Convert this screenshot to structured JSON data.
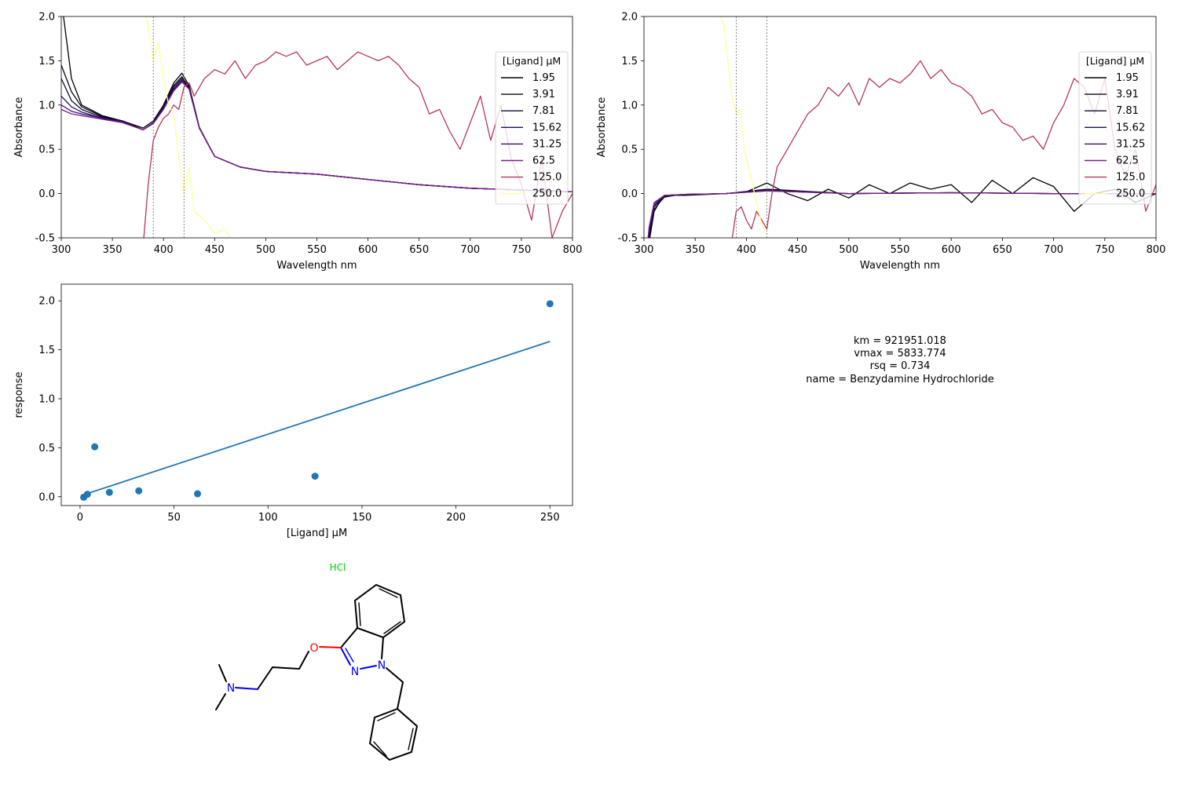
{
  "chart_data": [
    {
      "type": "line",
      "panel": "raw-spectra",
      "xlabel": "Wavelength nm",
      "ylabel": "Absorbance",
      "xlim": [
        300,
        800
      ],
      "ylim": [
        -0.5,
        2.0
      ],
      "xticks": [
        300,
        350,
        400,
        450,
        500,
        550,
        600,
        650,
        700,
        750,
        800
      ],
      "yticks": [
        -0.5,
        0.0,
        0.5,
        1.0,
        1.5,
        2.0
      ],
      "vlines": [
        390,
        420
      ],
      "legend": {
        "title": "[Ligand] µM",
        "position": "right",
        "entries": [
          "1.95",
          "3.91",
          "7.81",
          "15.62",
          "31.25",
          "62.5",
          "125.0",
          "250.0"
        ]
      },
      "series": [
        {
          "name": "1.95",
          "color": "#000000",
          "x": [
            300,
            310,
            320,
            340,
            360,
            380,
            390,
            400,
            410,
            418,
            425,
            435,
            450,
            475,
            500,
            550,
            600,
            650,
            700,
            750,
            800
          ],
          "y": [
            2.2,
            1.3,
            1.0,
            0.88,
            0.82,
            0.74,
            0.82,
            1.0,
            1.25,
            1.36,
            1.22,
            0.75,
            0.42,
            0.3,
            0.25,
            0.22,
            0.16,
            0.1,
            0.06,
            0.04,
            0.02
          ]
        },
        {
          "name": "3.91",
          "color": "#0a0720",
          "x": [
            300,
            310,
            320,
            340,
            360,
            380,
            390,
            400,
            410,
            418,
            425,
            435,
            450,
            475,
            500,
            550,
            600,
            650,
            700,
            750,
            800
          ],
          "y": [
            1.45,
            1.15,
            0.98,
            0.87,
            0.82,
            0.72,
            0.8,
            0.98,
            1.22,
            1.32,
            1.2,
            0.74,
            0.42,
            0.3,
            0.25,
            0.22,
            0.16,
            0.1,
            0.06,
            0.04,
            0.02
          ]
        },
        {
          "name": "7.81",
          "color": "#150c33",
          "x": [
            300,
            310,
            320,
            340,
            360,
            380,
            390,
            400,
            410,
            418,
            425,
            435,
            450,
            475,
            500,
            550,
            600,
            650,
            700,
            750,
            800
          ],
          "y": [
            1.3,
            1.05,
            0.95,
            0.86,
            0.82,
            0.72,
            0.8,
            0.97,
            1.2,
            1.3,
            1.2,
            0.74,
            0.42,
            0.3,
            0.25,
            0.22,
            0.16,
            0.1,
            0.06,
            0.04,
            0.02
          ]
        },
        {
          "name": "15.62",
          "color": "#231151",
          "x": [
            300,
            310,
            320,
            340,
            360,
            380,
            390,
            400,
            410,
            418,
            425,
            435,
            450,
            475,
            500,
            550,
            600,
            650,
            700,
            750,
            800
          ],
          "y": [
            1.1,
            0.98,
            0.92,
            0.85,
            0.81,
            0.72,
            0.8,
            0.96,
            1.18,
            1.28,
            1.19,
            0.74,
            0.42,
            0.3,
            0.25,
            0.22,
            0.16,
            0.1,
            0.06,
            0.04,
            0.02
          ]
        },
        {
          "name": "31.25",
          "color": "#3b0f70",
          "x": [
            300,
            310,
            320,
            340,
            360,
            380,
            390,
            400,
            410,
            418,
            425,
            435,
            450,
            475,
            500,
            550,
            600,
            650,
            700,
            750,
            800
          ],
          "y": [
            1.0,
            0.93,
            0.9,
            0.85,
            0.81,
            0.72,
            0.8,
            0.96,
            1.17,
            1.27,
            1.18,
            0.74,
            0.42,
            0.3,
            0.25,
            0.22,
            0.16,
            0.1,
            0.06,
            0.04,
            0.02
          ]
        },
        {
          "name": "62.5",
          "color": "#7a1e8a",
          "x": [
            300,
            310,
            320,
            340,
            360,
            380,
            390,
            400,
            410,
            418,
            425,
            435,
            450,
            475,
            500,
            550,
            600,
            650,
            700,
            750,
            800
          ],
          "y": [
            0.95,
            0.9,
            0.88,
            0.84,
            0.8,
            0.72,
            0.79,
            0.95,
            1.16,
            1.26,
            1.18,
            0.74,
            0.42,
            0.3,
            0.25,
            0.22,
            0.16,
            0.1,
            0.06,
            0.04,
            0.02
          ]
        },
        {
          "name": "125.0",
          "color": "#b5365a",
          "x": [
            380,
            385,
            390,
            395,
            400,
            405,
            410,
            415,
            420,
            425,
            430,
            440,
            450,
            460,
            470,
            480,
            490,
            500,
            510,
            520,
            530,
            540,
            550,
            560,
            570,
            580,
            590,
            600,
            610,
            620,
            630,
            640,
            650,
            660,
            670,
            680,
            690,
            700,
            710,
            720,
            730,
            740,
            750,
            760,
            770,
            780,
            790,
            800
          ],
          "y": [
            -0.6,
            0.1,
            0.6,
            0.75,
            0.85,
            0.9,
            1.0,
            0.95,
            1.2,
            1.25,
            1.1,
            1.3,
            1.4,
            1.35,
            1.5,
            1.3,
            1.45,
            1.5,
            1.6,
            1.55,
            1.6,
            1.45,
            1.5,
            1.55,
            1.4,
            1.5,
            1.6,
            1.55,
            1.5,
            1.55,
            1.45,
            1.3,
            1.2,
            0.9,
            0.95,
            0.7,
            0.5,
            0.8,
            1.1,
            0.6,
            1.0,
            0.4,
            0.1,
            -0.3,
            0.4,
            -0.5,
            -0.2,
            0.0
          ]
        },
        {
          "name": "250.0",
          "color": "#ffff99",
          "x": [
            380,
            385,
            390,
            395,
            400,
            405,
            410,
            415,
            420,
            425,
            430,
            440,
            450,
            460,
            470
          ],
          "y": [
            2.1,
            1.9,
            1.5,
            1.7,
            1.3,
            1.0,
            0.9,
            0.4,
            0.0,
            0.3,
            -0.2,
            -0.3,
            -0.45,
            -0.4,
            -0.6
          ]
        }
      ]
    },
    {
      "type": "line",
      "panel": "baseline-corrected-spectra",
      "xlabel": "Wavelength nm",
      "ylabel": "Absorbance",
      "xlim": [
        300,
        800
      ],
      "ylim": [
        -0.5,
        2.0
      ],
      "xticks": [
        300,
        350,
        400,
        450,
        500,
        550,
        600,
        650,
        700,
        750,
        800
      ],
      "yticks": [
        -0.5,
        0.0,
        0.5,
        1.0,
        1.5,
        2.0
      ],
      "vlines": [
        390,
        420
      ],
      "legend": {
        "title": "[Ligand] µM",
        "position": "right",
        "entries": [
          "1.95",
          "3.91",
          "7.81",
          "15.62",
          "31.25",
          "62.5",
          "125.0",
          "250.0"
        ]
      },
      "series": [
        {
          "name": "1.95",
          "color": "#000000",
          "x": [
            300,
            305,
            310,
            315,
            320,
            330,
            340,
            360,
            380,
            400,
            420,
            440,
            460,
            480,
            500,
            520,
            540,
            560,
            580,
            600,
            620,
            640,
            660,
            680,
            700,
            720,
            740,
            760,
            780,
            800
          ],
          "y": [
            -1.0,
            -0.55,
            -0.2,
            -0.1,
            -0.04,
            -0.02,
            -0.02,
            -0.01,
            0.0,
            0.02,
            0.12,
            0.0,
            -0.08,
            0.05,
            -0.05,
            0.1,
            0.0,
            0.12,
            0.05,
            0.1,
            -0.1,
            0.15,
            0.0,
            0.18,
            0.08,
            -0.2,
            0.0,
            0.05,
            -0.1,
            0.0
          ]
        },
        {
          "name": "3.91",
          "color": "#0a0720",
          "x": [
            300,
            305,
            310,
            320,
            340,
            380,
            420,
            500,
            600,
            700,
            800
          ],
          "y": [
            -1.0,
            -0.5,
            -0.18,
            -0.03,
            -0.01,
            0.0,
            0.05,
            0.0,
            0.01,
            0.0,
            0.0
          ]
        },
        {
          "name": "7.81",
          "color": "#150c33",
          "x": [
            300,
            305,
            310,
            320,
            340,
            380,
            420,
            500,
            600,
            700,
            800
          ],
          "y": [
            -1.0,
            -0.45,
            -0.15,
            -0.03,
            -0.01,
            0.0,
            0.04,
            0.0,
            0.01,
            0.0,
            0.0
          ]
        },
        {
          "name": "15.62",
          "color": "#231151",
          "x": [
            300,
            305,
            310,
            320,
            340,
            380,
            420,
            500,
            600,
            700,
            800
          ],
          "y": [
            -1.0,
            -0.42,
            -0.14,
            -0.02,
            -0.01,
            0.0,
            0.04,
            0.0,
            0.01,
            0.0,
            0.0
          ]
        },
        {
          "name": "31.25",
          "color": "#3b0f70",
          "x": [
            300,
            305,
            310,
            320,
            340,
            380,
            420,
            500,
            600,
            700,
            800
          ],
          "y": [
            -1.0,
            -0.4,
            -0.12,
            -0.02,
            -0.01,
            0.0,
            0.03,
            0.0,
            0.01,
            0.0,
            0.0
          ]
        },
        {
          "name": "62.5",
          "color": "#7a1e8a",
          "x": [
            300,
            305,
            310,
            320,
            340,
            380,
            420,
            500,
            600,
            700,
            800
          ],
          "y": [
            -1.0,
            -0.38,
            -0.1,
            -0.02,
            -0.01,
            0.0,
            0.03,
            0.0,
            0.01,
            0.0,
            0.0
          ]
        },
        {
          "name": "125.0",
          "color": "#b5365a",
          "x": [
            385,
            390,
            395,
            400,
            405,
            410,
            415,
            420,
            425,
            430,
            440,
            450,
            460,
            470,
            480,
            490,
            500,
            510,
            520,
            530,
            540,
            550,
            560,
            570,
            580,
            590,
            600,
            610,
            620,
            630,
            640,
            650,
            660,
            670,
            680,
            690,
            700,
            710,
            720,
            730,
            740,
            750,
            760,
            770,
            780,
            790,
            800
          ],
          "y": [
            -0.6,
            -0.2,
            -0.15,
            -0.3,
            -0.4,
            -0.2,
            -0.3,
            -0.4,
            0.0,
            0.3,
            0.5,
            0.7,
            0.9,
            1.0,
            1.2,
            1.1,
            1.25,
            1.0,
            1.3,
            1.2,
            1.3,
            1.25,
            1.35,
            1.5,
            1.3,
            1.4,
            1.25,
            1.2,
            1.1,
            0.9,
            0.95,
            0.8,
            0.75,
            0.6,
            0.65,
            0.5,
            0.8,
            1.0,
            1.3,
            1.2,
            0.9,
            1.3,
            0.5,
            0.2,
            0.5,
            -0.2,
            0.1
          ]
        },
        {
          "name": "250.0",
          "color": "#ffff99",
          "x": [
            375,
            378,
            382,
            386,
            390,
            394,
            398,
            402,
            406,
            410,
            414,
            418
          ],
          "y": [
            2.0,
            1.9,
            1.5,
            1.1,
            0.9,
            0.95,
            0.5,
            0.3,
            0.1,
            -0.1,
            -0.3,
            -0.45
          ]
        }
      ]
    },
    {
      "type": "scatter",
      "panel": "binding-fit",
      "xlabel": "[Ligand] µM",
      "ylabel": "response",
      "xlim": [
        -10,
        262
      ],
      "ylim": [
        -0.09,
        2.17
      ],
      "xticks": [
        0,
        50,
        100,
        150,
        200,
        250
      ],
      "yticks": [
        0.0,
        0.5,
        1.0,
        1.5,
        2.0
      ],
      "points": {
        "x": [
          1.95,
          3.91,
          7.81,
          15.62,
          31.25,
          62.5,
          125.0,
          250.0
        ],
        "y": [
          -0.005,
          0.025,
          0.51,
          0.045,
          0.06,
          0.03,
          0.21,
          1.97
        ]
      },
      "fit": {
        "x": [
          1.95,
          250.0
        ],
        "y": [
          0.02,
          1.585
        ]
      }
    }
  ],
  "fit_stats": {
    "km_line": "km = 921951.018",
    "vmax_line": "vmax = 5833.774",
    "rsq_line": "rsq = 0.734",
    "name_line": "name = Benzydamine Hydrochloride"
  },
  "molecule": {
    "salt_label": "HCl",
    "atom_labels": {
      "O": "O",
      "N1": "N",
      "N2": "N",
      "N3": "N"
    },
    "colors": {
      "bond": "#000000",
      "oxygen": "#ff0000",
      "nitrogen": "#0000ff",
      "salt": "#00cc00"
    }
  }
}
